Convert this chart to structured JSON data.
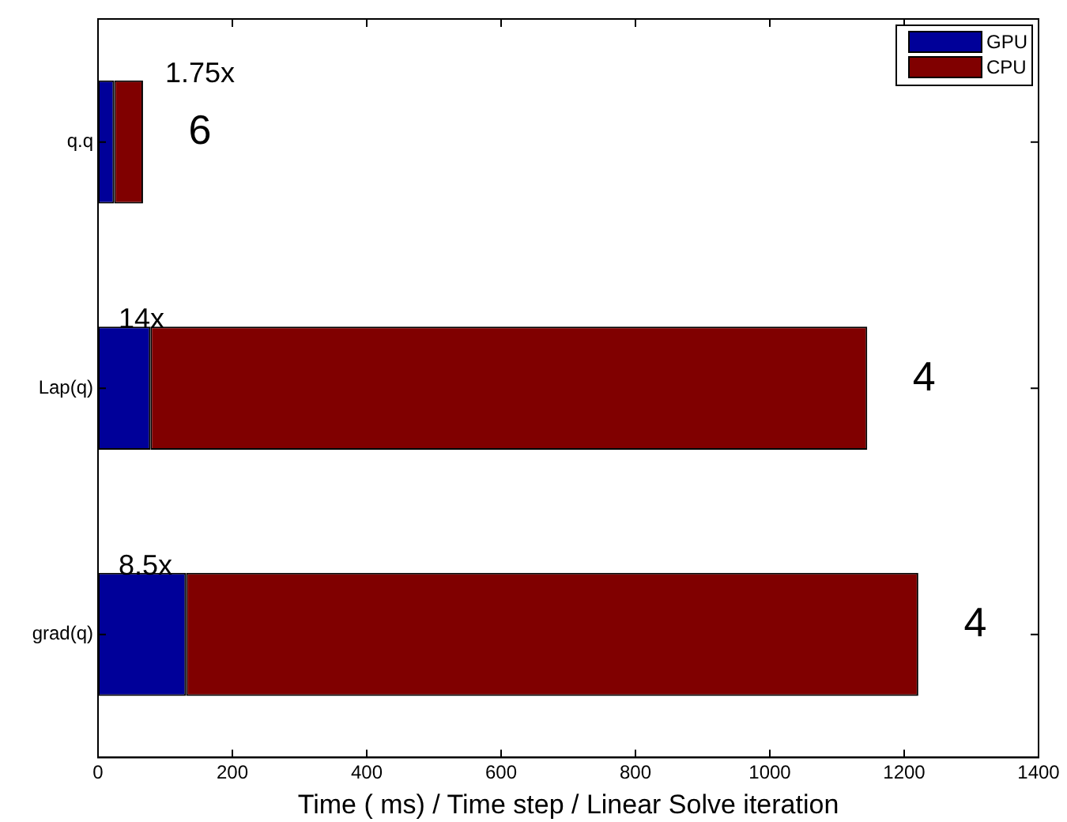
{
  "chart_data": {
    "type": "bar",
    "orientation": "horizontal",
    "stacked": true,
    "xlabel": "Time ( ms) / Time step / Linear Solve iteration",
    "categories": [
      "q.q",
      "Lap(q)",
      "grad(q)"
    ],
    "series": [
      {
        "name": "GPU",
        "color": "#000099",
        "values": [
          24,
          78,
          131
        ]
      },
      {
        "name": "CPU",
        "color": "#800000",
        "values": [
          43,
          1067,
          1090
        ]
      }
    ],
    "xlim": [
      0,
      1400
    ],
    "xticks": [
      0,
      200,
      400,
      600,
      800,
      1000,
      1200,
      1400
    ],
    "grid": false,
    "legend": "top right",
    "annotations": [
      "1.75x",
      "6",
      "14x",
      "4",
      "8.5x",
      "4"
    ]
  }
}
